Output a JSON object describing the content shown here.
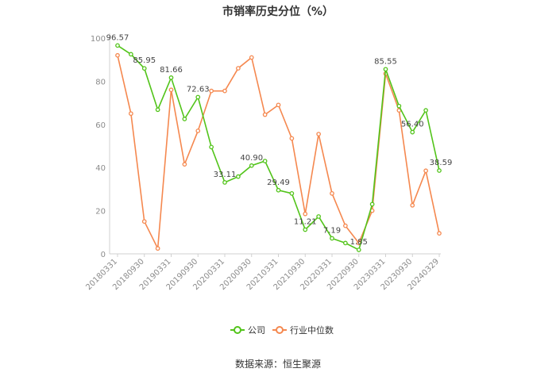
{
  "chart_data": {
    "type": "line",
    "title": "市销率历史分位（%）",
    "ylim": [
      0,
      100
    ],
    "yticks": [
      0,
      20,
      40,
      60,
      80,
      100
    ],
    "x": [
      "20180331",
      "20180630",
      "20180930",
      "20181231",
      "20190331",
      "20190630",
      "20190930",
      "20191231",
      "20200331",
      "20200630",
      "20200930",
      "20201231",
      "20210331",
      "20210630",
      "20210930",
      "20211231",
      "20220331",
      "20220630",
      "20220930",
      "20221231",
      "20230331",
      "20230630",
      "20230930",
      "20231231",
      "20240329"
    ],
    "xticks": [
      "20180331",
      "20180930",
      "20190331",
      "20190930",
      "20200331",
      "20200930",
      "20210331",
      "20210930",
      "20220331",
      "20220930",
      "20230331",
      "20230930",
      "20240329"
    ],
    "series": [
      {
        "name": "公司",
        "color": "#52c41a",
        "values": [
          96.57,
          92.5,
          85.95,
          66.8,
          81.66,
          62.5,
          72.63,
          49.5,
          33.11,
          35.8,
          40.9,
          43.0,
          29.49,
          28.0,
          11.21,
          17.3,
          7.19,
          5.0,
          1.85,
          23.0,
          85.55,
          68.5,
          56.4,
          66.5,
          38.59
        ],
        "labels": {
          "0": "96.57",
          "2": "85.95",
          "4": "81.66",
          "6": "72.63",
          "8": "33.11",
          "10": "40.90",
          "12": "29.49",
          "14": "11.21",
          "16": "7.19",
          "18": "1.85",
          "20": "85.55",
          "22": "56.40",
          "24": "38.59"
        }
      },
      {
        "name": "行业中位数",
        "color": "#f5884f",
        "values": [
          92.0,
          65.0,
          15.0,
          2.5,
          76.0,
          41.5,
          57.0,
          75.5,
          75.5,
          86.0,
          91.0,
          64.5,
          69.0,
          53.5,
          18.5,
          55.5,
          28.0,
          13.0,
          5.0,
          20.0,
          83.5,
          66.5,
          22.5,
          38.5,
          9.5
        ]
      }
    ],
    "legend_position": "bottom",
    "grid": false
  },
  "footer": {
    "source": "数据来源：恒生聚源"
  }
}
